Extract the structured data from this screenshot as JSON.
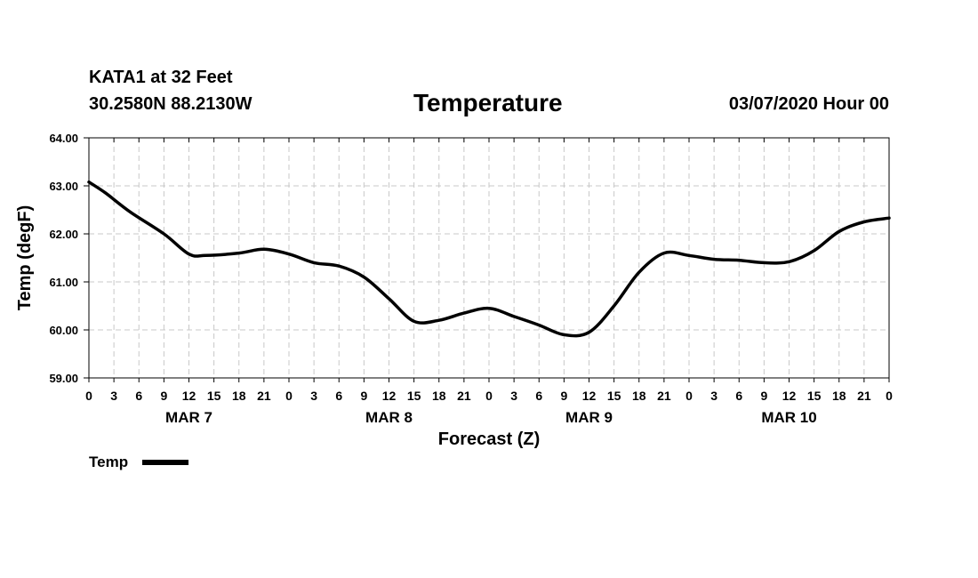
{
  "header": {
    "station": "KATA1 at 32 Feet",
    "coords": "30.2580N 88.2130W",
    "title": "Temperature",
    "timestamp": "03/07/2020 Hour 00"
  },
  "chart_data": {
    "type": "line",
    "title": "Temperature",
    "xlabel": "Forecast (Z)",
    "ylabel": "Temp (degF)",
    "ylim": [
      59,
      64
    ],
    "yticks": [
      "59.00",
      "60.00",
      "61.00",
      "62.00",
      "63.00",
      "64.00"
    ],
    "x_unit": "hours from 03/07/2020 00Z",
    "xlim": [
      0,
      96
    ],
    "xtick_labels": [
      "0",
      "3",
      "6",
      "9",
      "12",
      "15",
      "18",
      "21",
      "0",
      "3",
      "6",
      "9",
      "12",
      "15",
      "18",
      "21",
      "0",
      "3",
      "6",
      "9",
      "12",
      "15",
      "18",
      "21",
      "0",
      "3",
      "6",
      "9",
      "12",
      "15",
      "18",
      "21",
      "0"
    ],
    "day_labels": [
      "MAR 7",
      "MAR 8",
      "MAR 9",
      "MAR 10"
    ],
    "grid": true,
    "legend": "bottom-left",
    "series": [
      {
        "name": "Temp",
        "color": "#000000",
        "x": [
          0,
          2,
          5,
          9,
          12,
          14,
          18,
          21,
          24,
          27,
          30,
          33,
          36,
          39,
          42,
          45,
          48,
          51,
          54,
          57,
          60,
          63,
          66,
          69,
          72,
          75,
          78,
          81,
          84,
          87,
          90,
          93,
          96
        ],
        "y": [
          63.08,
          62.85,
          62.45,
          62.0,
          61.58,
          61.55,
          61.6,
          61.68,
          61.58,
          61.4,
          61.33,
          61.1,
          60.65,
          60.18,
          60.2,
          60.35,
          60.45,
          60.28,
          60.1,
          59.9,
          59.95,
          60.5,
          61.2,
          61.6,
          61.55,
          61.47,
          61.45,
          61.4,
          61.42,
          61.65,
          62.05,
          62.25,
          62.33
        ]
      }
    ]
  },
  "legend": {
    "label": "Temp"
  }
}
